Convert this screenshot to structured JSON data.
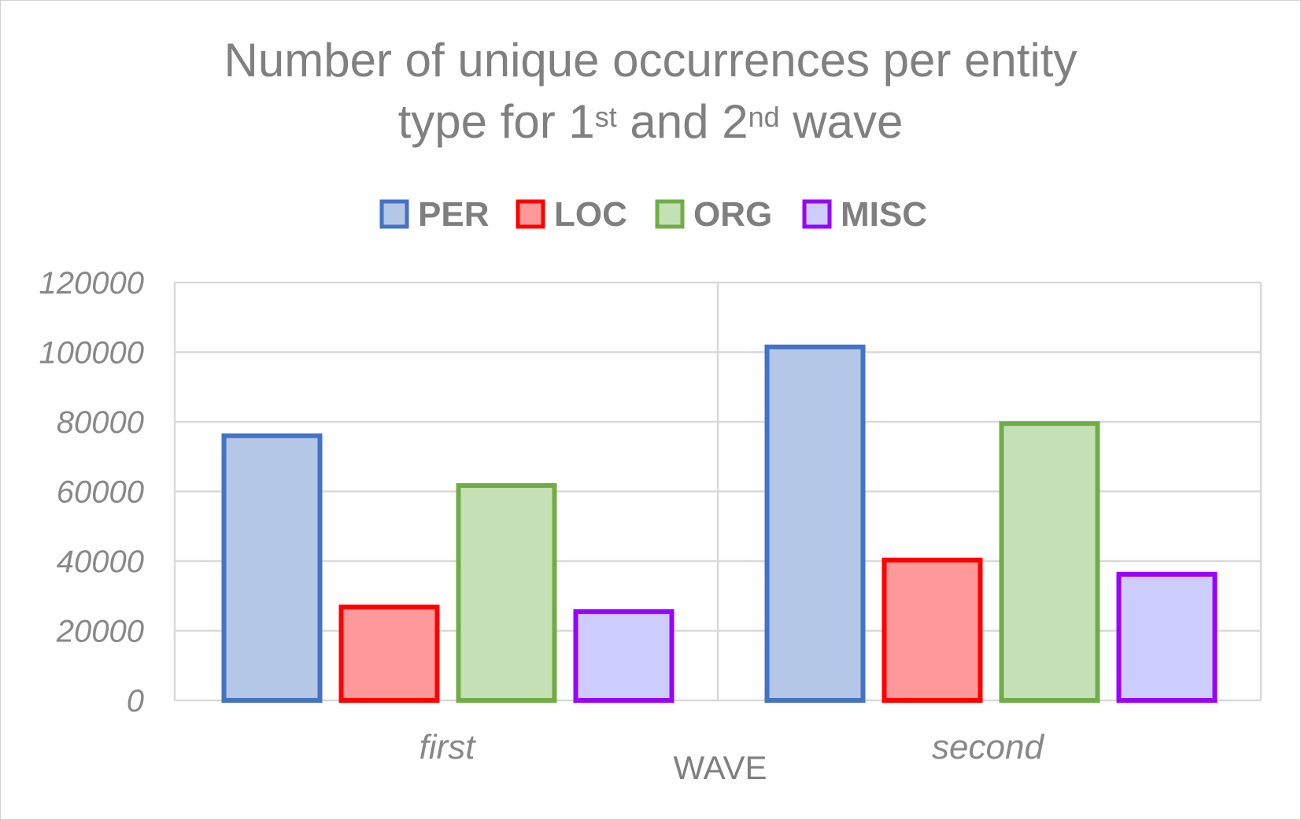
{
  "chart_data": {
    "type": "bar",
    "title": {
      "line1": "Number of unique occurrences per entity",
      "line2_prefix": "type for 1",
      "sup1": "st",
      "line2_mid": " and 2",
      "sup2": "nd",
      "line2_suffix": " wave"
    },
    "xlabel": "WAVE",
    "ylabel": "",
    "categories": [
      "first",
      "second"
    ],
    "ylim": [
      0,
      120000
    ],
    "yticks": [
      "0",
      "20000",
      "40000",
      "60000",
      "80000",
      "100000",
      "120000"
    ],
    "grid": true,
    "legend_position": "top-center",
    "series": [
      {
        "name": "PER",
        "values": [
          76000,
          101500
        ],
        "fill": "#b4c7e7",
        "stroke": "#4472c4"
      },
      {
        "name": "LOC",
        "values": [
          26800,
          40300
        ],
        "fill": "#ff9999",
        "stroke": "#ff0000"
      },
      {
        "name": "ORG",
        "values": [
          61700,
          79500
        ],
        "fill": "#c5e0b4",
        "stroke": "#70ad47"
      },
      {
        "name": "MISC",
        "values": [
          25500,
          36200
        ],
        "fill": "#ccccff",
        "stroke": "#9900ff"
      }
    ]
  }
}
